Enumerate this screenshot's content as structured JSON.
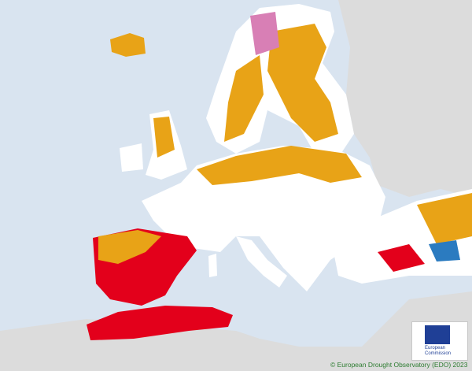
{
  "attribution": "© European Drought Observatory (EDO) 2023",
  "logo": {
    "line1": "European",
    "line2": "Commission"
  }
}
